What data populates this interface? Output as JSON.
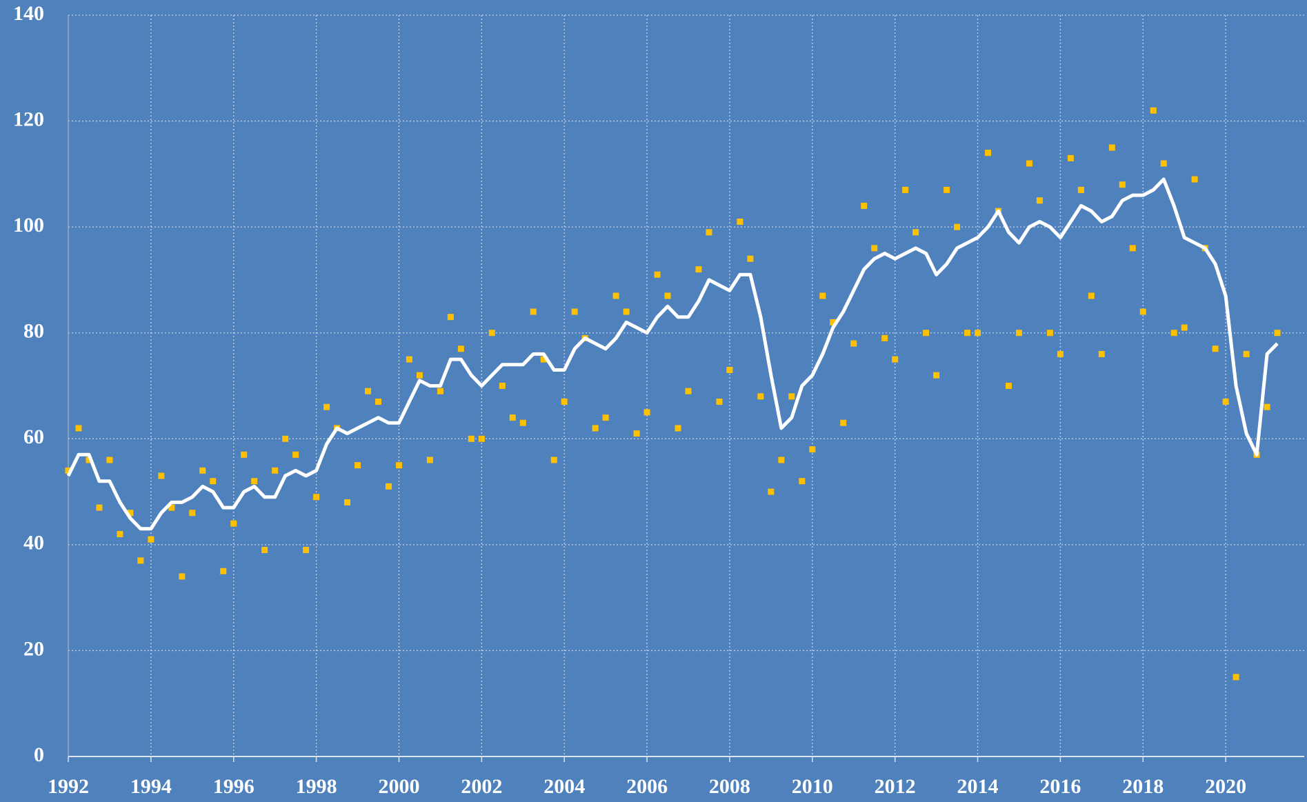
{
  "chart_data": {
    "type": "scatter",
    "background": "#4f81bd",
    "grid": true,
    "xlim": [
      1992,
      2021.9
    ],
    "ylim": [
      0,
      140
    ],
    "xticks": [
      1992,
      1994,
      1996,
      1998,
      2000,
      2002,
      2004,
      2006,
      2008,
      2010,
      2012,
      2014,
      2016,
      2018,
      2020
    ],
    "yticks": [
      0,
      20,
      40,
      60,
      80,
      100,
      120,
      140
    ],
    "x": [
      1992,
      1992.25,
      1992.5,
      1992.75,
      1993,
      1993.25,
      1993.5,
      1993.75,
      1994,
      1994.25,
      1994.5,
      1994.75,
      1995,
      1995.25,
      1995.5,
      1995.75,
      1996,
      1996.25,
      1996.5,
      1996.75,
      1997,
      1997.25,
      1997.5,
      1997.75,
      1998,
      1998.25,
      1998.5,
      1998.75,
      1999,
      1999.25,
      1999.5,
      1999.75,
      2000,
      2000.25,
      2000.5,
      2000.75,
      2001,
      2001.25,
      2001.5,
      2001.75,
      2002,
      2002.25,
      2002.5,
      2002.75,
      2003,
      2003.25,
      2003.5,
      2003.75,
      2004,
      2004.25,
      2004.5,
      2004.75,
      2005,
      2005.25,
      2005.5,
      2005.75,
      2006,
      2006.25,
      2006.5,
      2006.75,
      2007,
      2007.25,
      2007.5,
      2007.75,
      2008,
      2008.25,
      2008.5,
      2008.75,
      2009,
      2009.25,
      2009.5,
      2009.75,
      2010,
      2010.25,
      2010.5,
      2010.75,
      2011,
      2011.25,
      2011.5,
      2011.75,
      2012,
      2012.25,
      2012.5,
      2012.75,
      2013,
      2013.25,
      2013.5,
      2013.75,
      2014,
      2014.25,
      2014.5,
      2014.75,
      2015,
      2015.25,
      2015.5,
      2015.75,
      2016,
      2016.25,
      2016.5,
      2016.75,
      2017,
      2017.25,
      2017.5,
      2017.75,
      2018,
      2018.25,
      2018.5,
      2018.75,
      2019,
      2019.25,
      2019.5,
      2019.75,
      2020,
      2020.25,
      2020.5,
      2020.75,
      2021,
      2021.25
    ],
    "series": [
      {
        "type": "scatter",
        "color": "#ffc000",
        "values": [
          54,
          62,
          56,
          47,
          56,
          42,
          46,
          37,
          41,
          53,
          47,
          34,
          46,
          54,
          52,
          35,
          44,
          57,
          52,
          39,
          54,
          60,
          57,
          39,
          49,
          66,
          62,
          48,
          55,
          69,
          67,
          51,
          55,
          75,
          72,
          56,
          69,
          83,
          77,
          60,
          60,
          80,
          70,
          64,
          63,
          84,
          75,
          56,
          67,
          84,
          79,
          62,
          64,
          87,
          84,
          61,
          65,
          91,
          87,
          62,
          69,
          92,
          99,
          67,
          73,
          101,
          94,
          68,
          50,
          56,
          68,
          52,
          58,
          87,
          82,
          63,
          78,
          104,
          96,
          79,
          75,
          107,
          99,
          80,
          72,
          107,
          100,
          80,
          80,
          114,
          103,
          70,
          80,
          112,
          105,
          80,
          76,
          113,
          107,
          87,
          76,
          115,
          108,
          96,
          84,
          122,
          112,
          80,
          81,
          109,
          96,
          77,
          67,
          15,
          76,
          57,
          66,
          80
        ]
      },
      {
        "type": "line",
        "color": "#ffffff",
        "values": [
          53,
          57,
          57,
          52,
          52,
          48,
          45,
          43,
          43,
          46,
          48,
          48,
          49,
          51,
          50,
          47,
          47,
          50,
          51,
          49,
          49,
          53,
          54,
          53,
          54,
          59,
          62,
          61,
          62,
          63,
          64,
          63,
          63,
          67,
          71,
          70,
          70,
          75,
          75,
          72,
          70,
          72,
          74,
          74,
          74,
          76,
          76,
          73,
          73,
          77,
          79,
          78,
          77,
          79,
          82,
          81,
          80,
          83,
          85,
          83,
          83,
          86,
          90,
          89,
          88,
          91,
          91,
          83,
          72,
          62,
          64,
          70,
          72,
          76,
          81,
          84,
          88,
          92,
          94,
          95,
          94,
          95,
          96,
          95,
          91,
          93,
          96,
          97,
          98,
          100,
          103,
          99,
          97,
          100,
          101,
          100,
          98,
          101,
          104,
          103,
          101,
          102,
          105,
          106,
          106,
          107,
          109,
          104,
          98,
          97,
          96,
          93,
          87,
          70,
          61,
          57,
          76,
          78
        ]
      }
    ]
  }
}
